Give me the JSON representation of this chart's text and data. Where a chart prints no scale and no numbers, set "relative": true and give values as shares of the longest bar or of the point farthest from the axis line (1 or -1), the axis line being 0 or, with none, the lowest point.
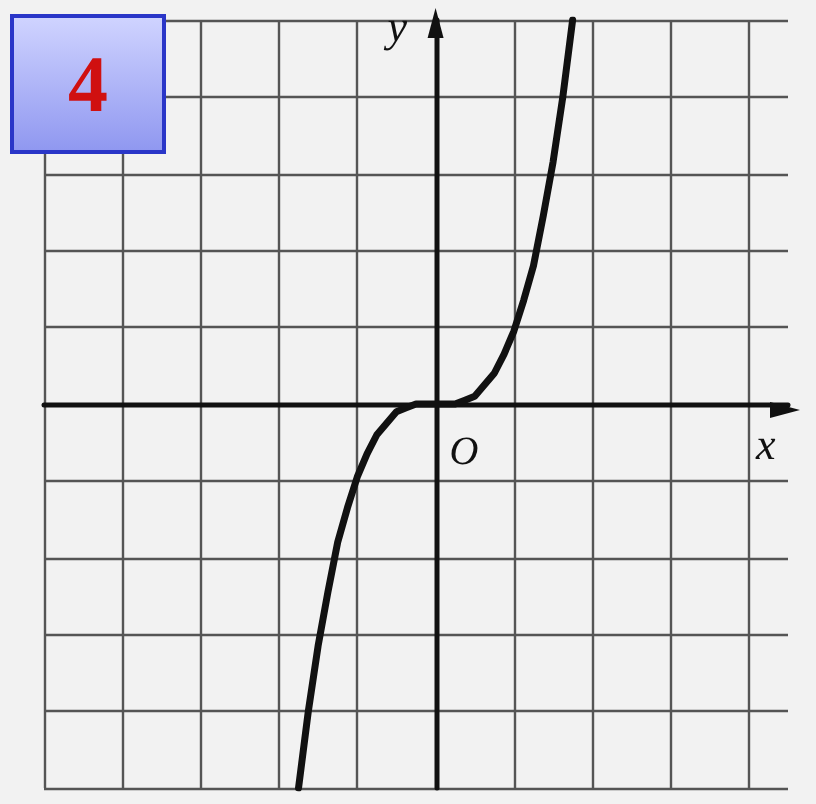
{
  "chart_data": {
    "type": "line",
    "relative": true,
    "xlabel": "x",
    "ylabel": "y",
    "annotations": [
      "4",
      "O"
    ],
    "categories": [
      null,
      null,
      null,
      null,
      null,
      null,
      null,
      null,
      null,
      null,
      null,
      null,
      null,
      null,
      null,
      null,
      null,
      null,
      null,
      null,
      null,
      null,
      null,
      null,
      null,
      null,
      null,
      null,
      null,
      null,
      null,
      null,
      null,
      null,
      null,
      null,
      null,
      null,
      null,
      null,
      null,
      null,
      null,
      null,
      null,
      null,
      null,
      null,
      null,
      null,
      null,
      null,
      null,
      null,
      null,
      null,
      null,
      null,
      null,
      null,
      null,
      null,
      null,
      null,
      null,
      null,
      null,
      null,
      null,
      null,
      null,
      null,
      null,
      null,
      null,
      null,
      null
    ],
    "series": [
      {
        "color": "#111111",
        "values": [
          null,
          null,
          null,
          null,
          null,
          null,
          null,
          null,
          null,
          null,
          null,
          null,
          null,
          null,
          null,
          null,
          null,
          null,
          null,
          null,
          null,
          null,
          null,
          null,
          null,
          null,
          -1,
          -0.8,
          -0.63,
          -0.49,
          -0.36,
          -0.27,
          -0.19,
          -0.13,
          -0.08,
          -0.05,
          -0.02,
          -0.01,
          0,
          0,
          0,
          0,
          0,
          0.01,
          0.02,
          0.05,
          0.08,
          0.13,
          0.19,
          0.27,
          0.36,
          0.49,
          0.63,
          0.8,
          1,
          null,
          null,
          null,
          null,
          null,
          null,
          null,
          null,
          null,
          null,
          null,
          null,
          null,
          null,
          null,
          null,
          null,
          null,
          null,
          null,
          null,
          null
        ]
      }
    ],
    "grid": true,
    "marker": "none"
  }
}
